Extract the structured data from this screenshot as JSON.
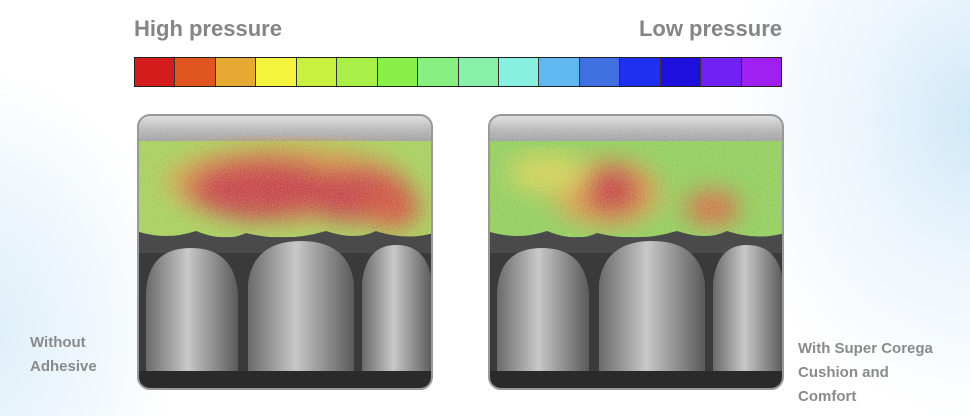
{
  "scale": {
    "high_label": "High pressure",
    "low_label": "Low pressure",
    "colors": [
      "#d41c1c",
      "#e05520",
      "#e8a834",
      "#f5f540",
      "#c8f03c",
      "#a8f048",
      "#88f048",
      "#88f080",
      "#88f0a8",
      "#88f0e0",
      "#60b8f0",
      "#4070e0",
      "#2030f0",
      "#2010e0",
      "#7020f0",
      "#a020f0"
    ]
  },
  "panels": [
    {
      "caption": "Without Adhesive"
    },
    {
      "caption": "With Super Corega Cushion and Comfort"
    }
  ]
}
